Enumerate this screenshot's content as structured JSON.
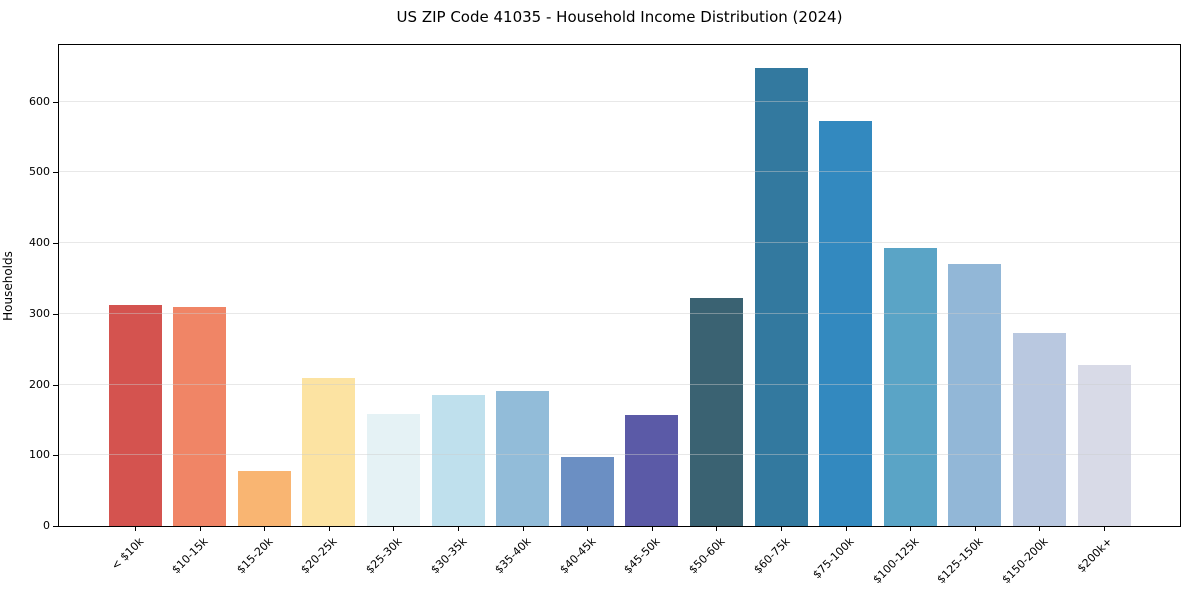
{
  "chart_data": {
    "type": "bar",
    "title": "US ZIP Code 41035 - Household Income Distribution (2024)",
    "xlabel": "",
    "ylabel": "Households",
    "categories": [
      "< $10k",
      "$10-15k",
      "$15-20k",
      "$20-25k",
      "$25-30k",
      "$30-35k",
      "$35-40k",
      "$40-45k",
      "$45-50k",
      "$50-60k",
      "$60-75k",
      "$75-100k",
      "$100-125k",
      "$125-150k",
      "$150-200k",
      "$200k+"
    ],
    "values": [
      313,
      310,
      78,
      209,
      158,
      185,
      191,
      97,
      157,
      322,
      648,
      572,
      393,
      371,
      273,
      228
    ],
    "bar_colors": [
      "#d4534f",
      "#f08566",
      "#f9b572",
      "#fce3a2",
      "#e5f2f5",
      "#bfe0ed",
      "#92bcd9",
      "#6b8fc3",
      "#5b5aa7",
      "#3a6272",
      "#33799f",
      "#3389bf",
      "#5aa4c6",
      "#92b7d7",
      "#b9c8e0",
      "#d8dae7"
    ],
    "ylim": [
      0,
      680
    ],
    "yticks": [
      0,
      100,
      200,
      300,
      400,
      500,
      600
    ],
    "grid": "horizontal",
    "legend": "none",
    "x_tick_rotation_deg": 45,
    "colors": {
      "background": "#ffffff",
      "axis": "#000000",
      "grid": "#cbcbcb",
      "text": "#000000"
    }
  }
}
